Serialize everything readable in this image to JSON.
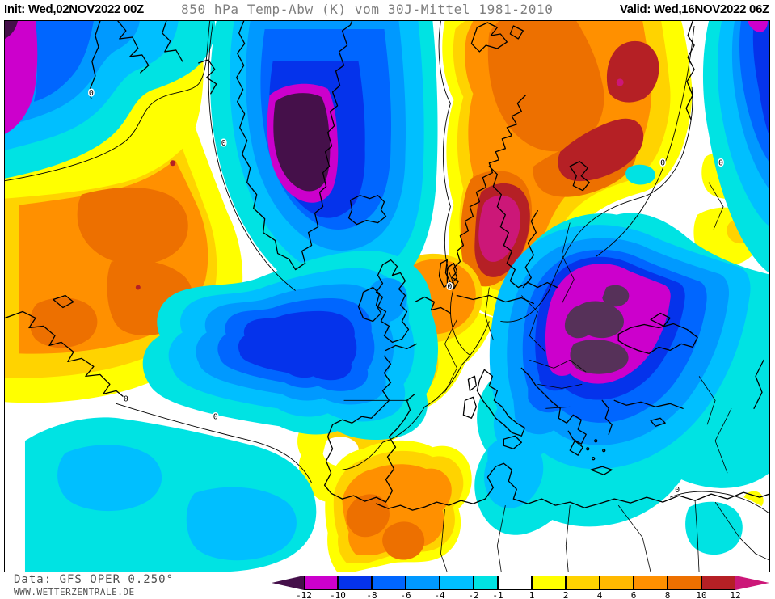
{
  "title": {
    "init_label": "Init: ",
    "init_value": "Wed,02NOV2022 00Z",
    "subtitle": "850 hPa Temp-Abw (K) vom 30J-Mittel 1981-2010",
    "valid_label": "Valid: ",
    "valid_value": "Wed,16NOV2022 06Z"
  },
  "footer": {
    "data_source": "Data: GFS OPER 0.250°",
    "website": "WWW.WETTERZENTRALE.DE"
  },
  "legend": {
    "unit": "K",
    "tick_labels": [
      "-12",
      "-10",
      "-8",
      "-6",
      "-4",
      "-2",
      "-1",
      "1",
      "2",
      "4",
      "6",
      "8",
      "10",
      "12"
    ],
    "left_arrow": {
      "label": "below -12",
      "color": "#45104A",
      "width": 40
    },
    "right_arrow": {
      "label": "above 12",
      "color": "#CC1778",
      "width": 42
    },
    "cells": [
      {
        "range": "-12 to -10",
        "color": "#CC00CC",
        "width": 42
      },
      {
        "range": "-10 to -8",
        "color": "#0533EB",
        "width": 42
      },
      {
        "range": "-8 to -6",
        "color": "#0066FF",
        "width": 42
      },
      {
        "range": "-6 to -4",
        "color": "#0099FF",
        "width": 42
      },
      {
        "range": "-4 to -2",
        "color": "#00BFFF",
        "width": 42
      },
      {
        "range": "-2 to -1",
        "color": "#00E3E3",
        "width": 30
      },
      {
        "range": "-1 to 1",
        "color": "#FFFFFF",
        "width": 42
      },
      {
        "range": "1 to 2",
        "color": "#FFFF00",
        "width": 42
      },
      {
        "range": "2 to 4",
        "color": "#FFD300",
        "width": 42
      },
      {
        "range": "4 to 6",
        "color": "#FFB900",
        "width": 42
      },
      {
        "range": "6 to 8",
        "color": "#FF9000",
        "width": 42
      },
      {
        "range": "8 to 10",
        "color": "#ED7000",
        "width": 42
      },
      {
        "range": "10 to 12",
        "color": "#B52025",
        "width": 42
      }
    ]
  },
  "map": {
    "zero_label": "0",
    "region": "Europe / North Atlantic",
    "parameter": "850 hPa temperature anomaly (K) vs 30-year mean 1981-2010"
  }
}
